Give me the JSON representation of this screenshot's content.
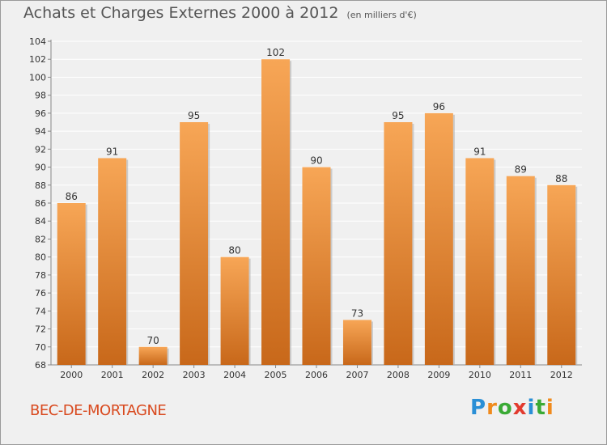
{
  "header": {
    "title": "Achats et Charges Externes 2000 à 2012",
    "subtitle": "(en milliers d'€)"
  },
  "location": "BEC-DE-MORTAGNE",
  "brand": {
    "text": "Proxiti",
    "letter_colors": [
      "#2a8fd6",
      "#f08a1c",
      "#3aaa35",
      "#e23a2e",
      "#2a8fd6",
      "#3aaa35",
      "#f08a1c"
    ]
  },
  "colors": {
    "bar_top": "#f7a656",
    "bar_bottom": "#c8681a",
    "grid": "#ffffff",
    "text": "#333333"
  },
  "chart_data": {
    "type": "bar",
    "categories": [
      "2000",
      "2001",
      "2002",
      "2003",
      "2004",
      "2005",
      "2006",
      "2007",
      "2008",
      "2009",
      "2010",
      "2011",
      "2012"
    ],
    "values": [
      86,
      91,
      70,
      95,
      80,
      102,
      90,
      73,
      95,
      96,
      91,
      89,
      88
    ],
    "title": "Achats et Charges Externes 2000 à 2012",
    "subtitle": "(en milliers d'€)",
    "ylim": [
      68,
      104
    ],
    "yticks": [
      68,
      70,
      72,
      74,
      76,
      78,
      80,
      82,
      84,
      86,
      88,
      90,
      92,
      94,
      96,
      98,
      100,
      102,
      104
    ],
    "grid": true,
    "data_labels": true
  }
}
